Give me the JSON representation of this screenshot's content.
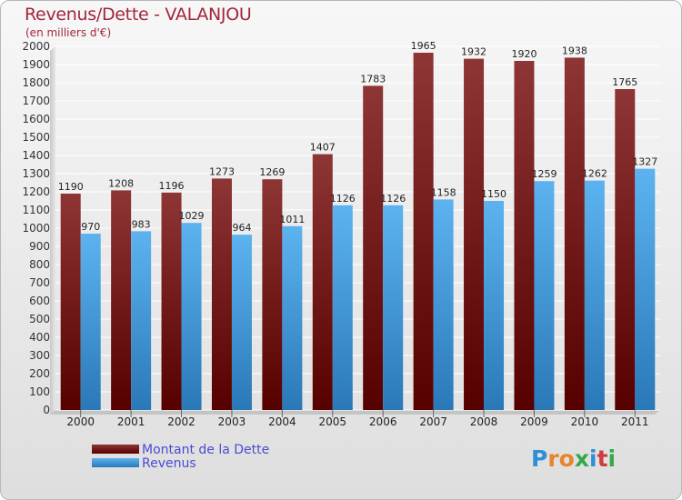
{
  "title": "Revenus/Dette - VALANJOU",
  "subtitle": "(en milliers d'€)",
  "logo_text": "Proxiti",
  "colors": {
    "dette": "#7b1e1e",
    "revenus": "#4aa3e8",
    "title": "#a3253b",
    "legend_text": "#4b4bd3"
  },
  "chart_data": {
    "type": "bar",
    "categories": [
      "2000",
      "2001",
      "2002",
      "2003",
      "2004",
      "2005",
      "2006",
      "2007",
      "2008",
      "2009",
      "2010",
      "2011"
    ],
    "series": [
      {
        "name": "Montant de la Dette",
        "values": [
          1190,
          1208,
          1196,
          1273,
          1269,
          1407,
          1783,
          1965,
          1932,
          1920,
          1938,
          1765
        ]
      },
      {
        "name": "Revenus",
        "values": [
          970,
          983,
          1029,
          964,
          1011,
          1126,
          1126,
          1158,
          1150,
          1259,
          1262,
          1327
        ]
      }
    ],
    "ylim": [
      0,
      2000
    ],
    "ytick_step": 100,
    "grid": true,
    "legend_position": "bottom-left"
  }
}
